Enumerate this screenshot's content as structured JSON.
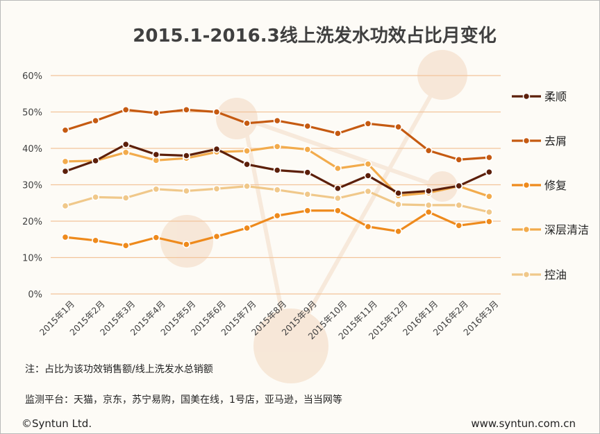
{
  "note_1": "注：占比为该功效销售额/线上洗发水总销额",
  "note_2": "监测平台：天猫，京东，苏宁易购，国美在线，1号店，亚马逊，当当网等",
  "footer_left": "©Syntun Ltd.",
  "footer_right": "www.syntun.com.cn",
  "chart_data": {
    "type": "line",
    "title": "2015.1-2016.3线上洗发水功效占比月变化",
    "xlabel": "",
    "ylabel": "",
    "ylim": [
      0,
      0.6
    ],
    "yticks": [
      "0%",
      "10%",
      "20%",
      "30%",
      "40%",
      "50%",
      "60%"
    ],
    "grid": true,
    "legend_position": "right",
    "categories": [
      "2015年1月",
      "2015年2月",
      "2015年3月",
      "2015年4月",
      "2015年5月",
      "2015年6月",
      "2015年7月",
      "2015年8月",
      "2015年9月",
      "2015年10月",
      "2015年11月",
      "2015年12月",
      "2016年1月",
      "2016年2月",
      "2016年3月"
    ],
    "series": [
      {
        "name": "柔顺",
        "color": "#5c1f0a",
        "values": [
          0.337,
          0.366,
          0.411,
          0.383,
          0.38,
          0.398,
          0.356,
          0.34,
          0.334,
          0.29,
          0.325,
          0.277,
          0.283,
          0.297,
          0.335
        ]
      },
      {
        "name": "去屑",
        "color": "#c55a11",
        "values": [
          0.45,
          0.476,
          0.506,
          0.497,
          0.506,
          0.5,
          0.469,
          0.476,
          0.461,
          0.441,
          0.468,
          0.459,
          0.394,
          0.369,
          0.375
        ]
      },
      {
        "name": "修复",
        "color": "#ee8a1c",
        "values": [
          0.156,
          0.147,
          0.133,
          0.155,
          0.136,
          0.158,
          0.181,
          0.215,
          0.229,
          0.229,
          0.185,
          0.172,
          0.225,
          0.188,
          0.199
        ]
      },
      {
        "name": "深层清洁",
        "color": "#f2ab4c",
        "values": [
          0.364,
          0.366,
          0.389,
          0.367,
          0.373,
          0.39,
          0.393,
          0.405,
          0.397,
          0.345,
          0.357,
          0.27,
          0.278,
          0.296,
          0.268
        ]
      },
      {
        "name": "控油",
        "color": "#f0c88a",
        "values": [
          0.242,
          0.266,
          0.264,
          0.288,
          0.283,
          0.289,
          0.296,
          0.286,
          0.274,
          0.263,
          0.282,
          0.246,
          0.244,
          0.244,
          0.225
        ]
      }
    ]
  }
}
